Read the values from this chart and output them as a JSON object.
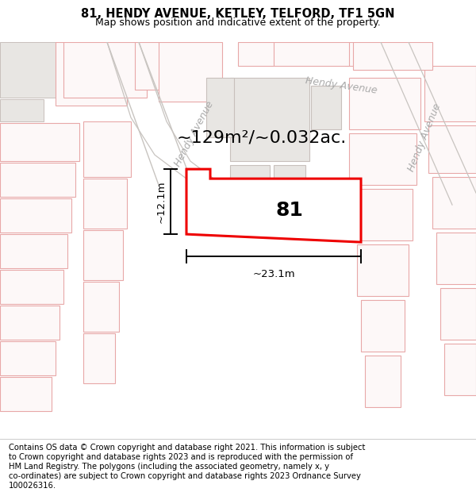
{
  "title": "81, HENDY AVENUE, KETLEY, TELFORD, TF1 5GN",
  "subtitle": "Map shows position and indicative extent of the property.",
  "footer_lines": [
    "Contains OS data © Crown copyright and database right 2021. This information is subject",
    "to Crown copyright and database rights 2023 and is reproduced with the permission of",
    "HM Land Registry. The polygons (including the associated geometry, namely x, y",
    "co-ordinates) are subject to Crown copyright and database rights 2023 Ordnance Survey",
    "100026316."
  ],
  "map_bg": "#ffffff",
  "building_fill_gray": "#e8e6e3",
  "building_fill_white": "#f5f3f0",
  "building_stroke_pink": "#e8a8a8",
  "building_fill_pink": "#fdf8f8",
  "road_stroke": "#c8c4c0",
  "road_label_color": "#aaaaaa",
  "property_fill": "#ffffff",
  "property_stroke": "#ee0000",
  "area_text": "~129m²/~0.032ac.",
  "property_label": "81",
  "dim_width": "~23.1m",
  "dim_height": "~12.1m",
  "title_fontsize": 10.5,
  "subtitle_fontsize": 9,
  "footer_fontsize": 7.2,
  "area_fontsize": 16,
  "label_fontsize": 18,
  "dim_fontsize": 9.5,
  "road_label_fontsize": 9
}
